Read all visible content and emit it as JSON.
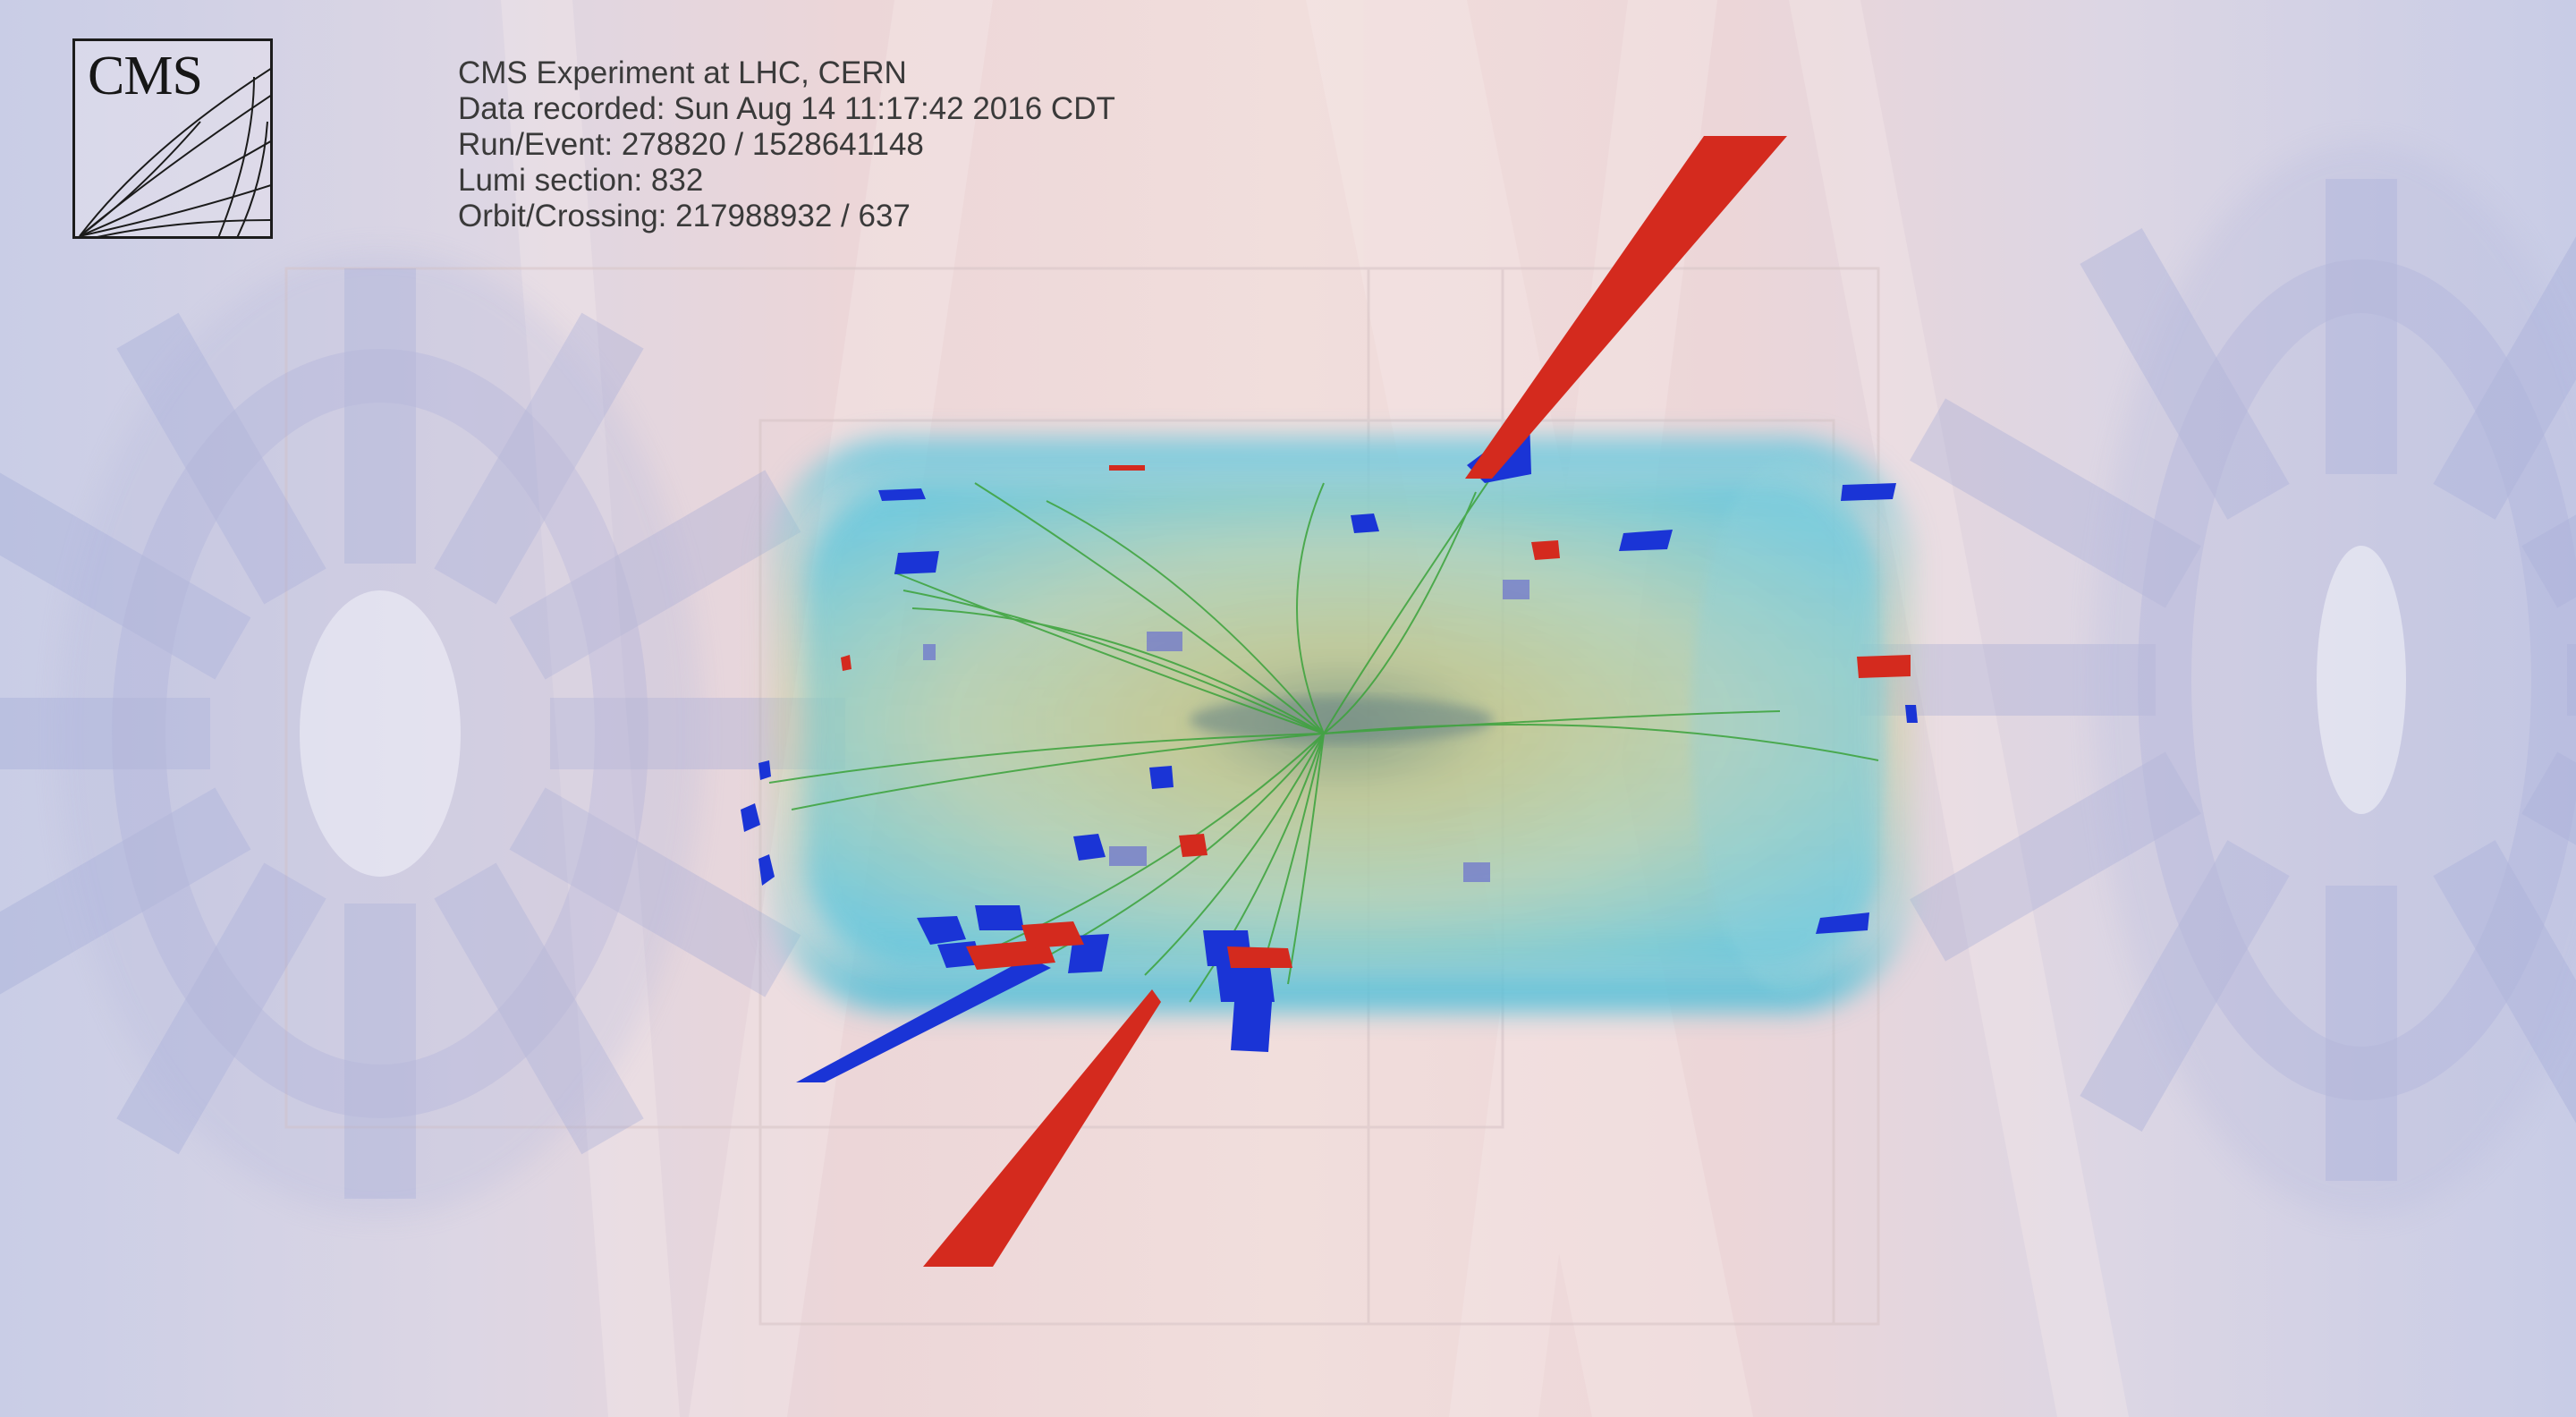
{
  "logo": {
    "text": "CMS"
  },
  "event_info": {
    "experiment": "CMS Experiment at LHC, CERN",
    "data_recorded": "Data recorded: Sun Aug 14 11:17:42 2016 CDT",
    "run_event": "Run/Event: 278820 / 1528641148",
    "lumi_section": "Lumi section: 832",
    "orbit_crossing": "Orbit/Crossing: 217988932 / 637"
  },
  "colors": {
    "ecal_deposit": "#d42a1e",
    "hcal_deposit": "#1a34d6",
    "tracks": "#3aa23a",
    "tracker_barrel": "#5ec8dc",
    "muon_system": "#a9aede"
  }
}
